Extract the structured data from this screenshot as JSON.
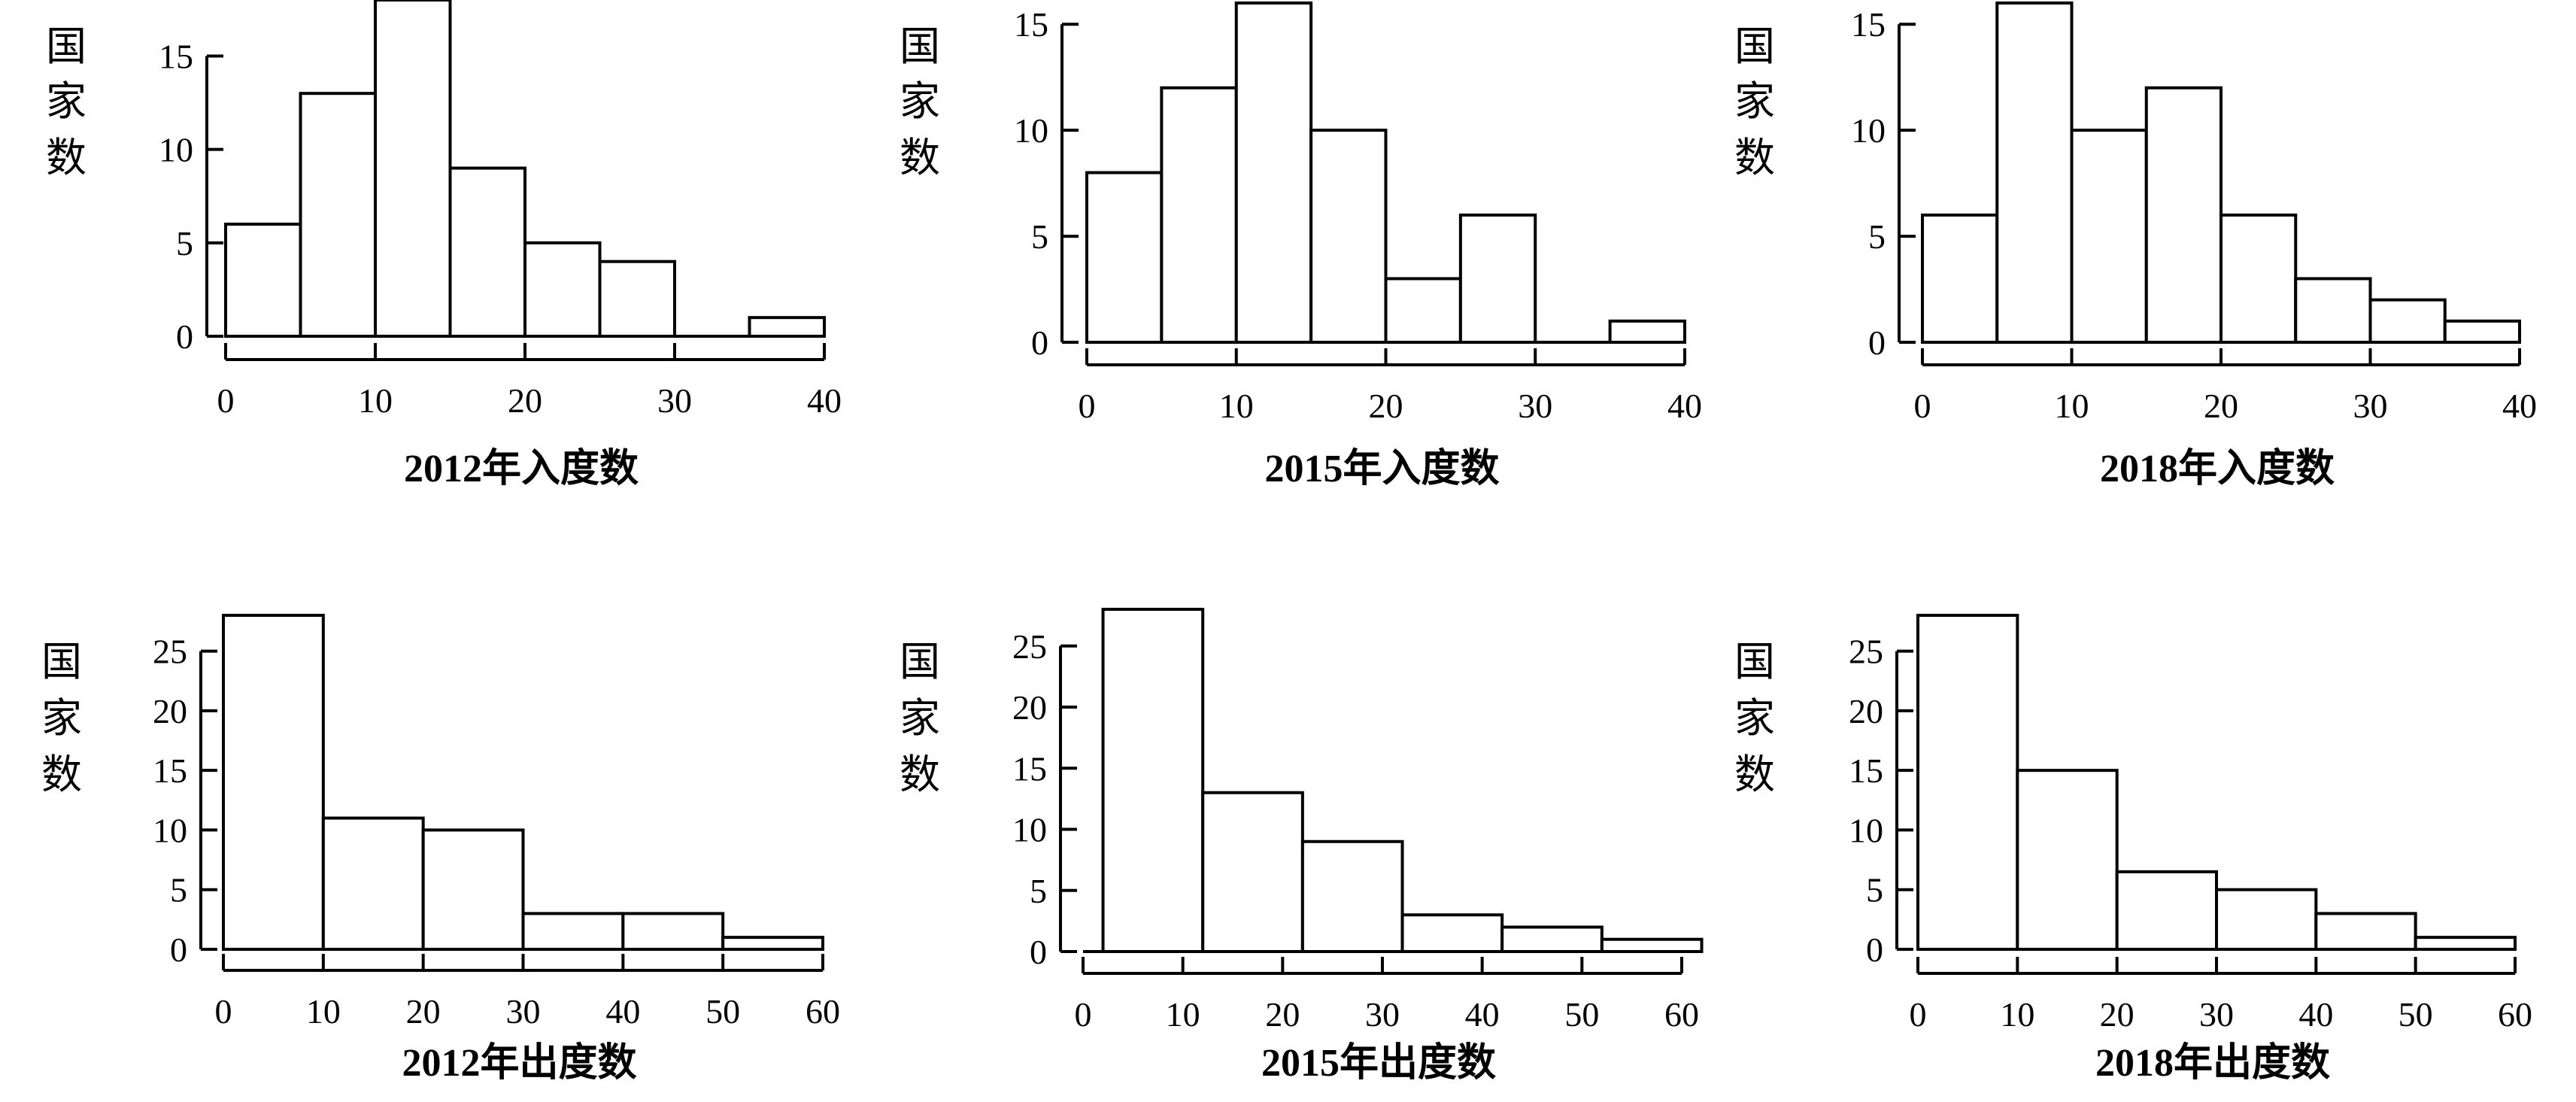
{
  "chart_data": [
    {
      "type": "bar",
      "ylabel": "国家数",
      "xlabel": "2012年入度数",
      "xlim": [
        0,
        40
      ],
      "ylim": [
        0,
        18
      ],
      "xticks": [
        "0",
        "10",
        "20",
        "30",
        "40"
      ],
      "yticks": [
        "0",
        "5",
        "10",
        "15"
      ],
      "bin_width": 5,
      "bin_starts": [
        0,
        5,
        10,
        15,
        20,
        25,
        30,
        35
      ],
      "values": [
        6,
        13,
        18,
        9,
        5,
        4,
        0,
        1
      ]
    },
    {
      "type": "bar",
      "ylabel": "国家数",
      "xlabel": "2015年入度数",
      "xlim": [
        0,
        40
      ],
      "ylim": [
        0,
        16
      ],
      "xticks": [
        "0",
        "10",
        "20",
        "30",
        "40"
      ],
      "yticks": [
        "0",
        "5",
        "10",
        "15"
      ],
      "bin_width": 5,
      "bin_starts": [
        0,
        5,
        10,
        15,
        20,
        25,
        30,
        35
      ],
      "values": [
        8,
        12,
        16,
        10,
        3,
        6,
        0,
        1
      ]
    },
    {
      "type": "bar",
      "ylabel": "国家数",
      "xlabel": "2018年入度数",
      "xlim": [
        0,
        40
      ],
      "ylim": [
        0,
        16
      ],
      "xticks": [
        "0",
        "10",
        "20",
        "30",
        "40"
      ],
      "yticks": [
        "0",
        "5",
        "10",
        "15"
      ],
      "bin_width": 5,
      "bin_starts": [
        0,
        5,
        10,
        15,
        20,
        25,
        30,
        35
      ],
      "values": [
        6,
        16,
        10,
        12,
        6,
        3,
        2,
        1
      ]
    },
    {
      "type": "bar",
      "ylabel": "国家数",
      "xlabel": "2012年出度数",
      "xlim": [
        0,
        60
      ],
      "ylim": [
        0,
        28
      ],
      "xticks": [
        "0",
        "10",
        "20",
        "30",
        "40",
        "50",
        "60"
      ],
      "yticks": [
        "0",
        "5",
        "10",
        "15",
        "20",
        "25"
      ],
      "bin_width": 10,
      "bin_starts": [
        0,
        10,
        20,
        30,
        40,
        50
      ],
      "values": [
        28,
        11,
        10,
        3,
        3,
        1
      ]
    },
    {
      "type": "bar",
      "ylabel": "国家数",
      "xlabel": "2015年出度数",
      "xlim": [
        0,
        60
      ],
      "ylim": [
        0,
        28
      ],
      "xticks": [
        "0",
        "10",
        "20",
        "30",
        "40",
        "50",
        "60"
      ],
      "yticks": [
        "0",
        "5",
        "10",
        "15",
        "20",
        "25"
      ],
      "bin_width": 10,
      "bin_starts": [
        2,
        12,
        22,
        32,
        42,
        52
      ],
      "values": [
        28,
        13,
        9,
        3,
        2,
        1
      ]
    },
    {
      "type": "bar",
      "ylabel": "国家数",
      "xlabel": "2018年出度数",
      "xlim": [
        0,
        60
      ],
      "ylim": [
        0,
        28
      ],
      "xticks": [
        "0",
        "10",
        "20",
        "30",
        "40",
        "50",
        "60"
      ],
      "yticks": [
        "0",
        "5",
        "10",
        "15",
        "20",
        "25"
      ],
      "bin_width": 10,
      "bin_starts": [
        0,
        10,
        20,
        30,
        40,
        50
      ],
      "values": [
        28,
        15,
        6.5,
        5,
        3,
        1
      ]
    }
  ]
}
